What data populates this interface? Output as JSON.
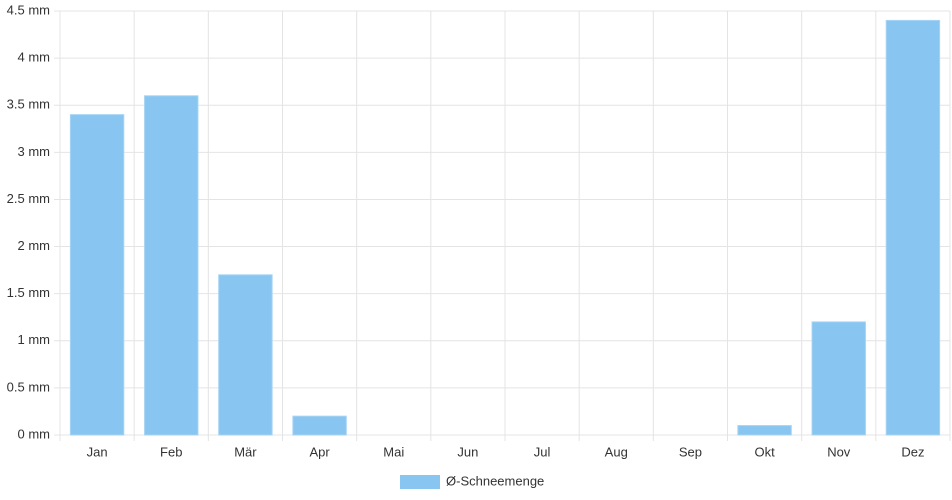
{
  "chart_data": {
    "type": "bar",
    "categories": [
      "Jan",
      "Feb",
      "Mär",
      "Apr",
      "Mai",
      "Jun",
      "Jul",
      "Aug",
      "Sep",
      "Okt",
      "Nov",
      "Dez"
    ],
    "series": [
      {
        "name": "Ø-Schneemenge",
        "color": "#88c5f0",
        "values": [
          3.4,
          3.6,
          1.7,
          0.2,
          0,
          0,
          0,
          0,
          0,
          0.1,
          1.2,
          4.4
        ]
      }
    ],
    "ylim": [
      0,
      4.5
    ],
    "yticks": [
      {
        "value": 0,
        "label": "0 mm"
      },
      {
        "value": 0.5,
        "label": "0.5 mm"
      },
      {
        "value": 1,
        "label": "1 mm"
      },
      {
        "value": 1.5,
        "label": "1.5 mm"
      },
      {
        "value": 2,
        "label": "2 mm"
      },
      {
        "value": 2.5,
        "label": "2.5 mm"
      },
      {
        "value": 3,
        "label": "3 mm"
      },
      {
        "value": 3.5,
        "label": "3.5 mm"
      },
      {
        "value": 4,
        "label": "4 mm"
      },
      {
        "value": 4.5,
        "label": "4.5 mm"
      }
    ],
    "grid": true,
    "legend": "bottom"
  }
}
